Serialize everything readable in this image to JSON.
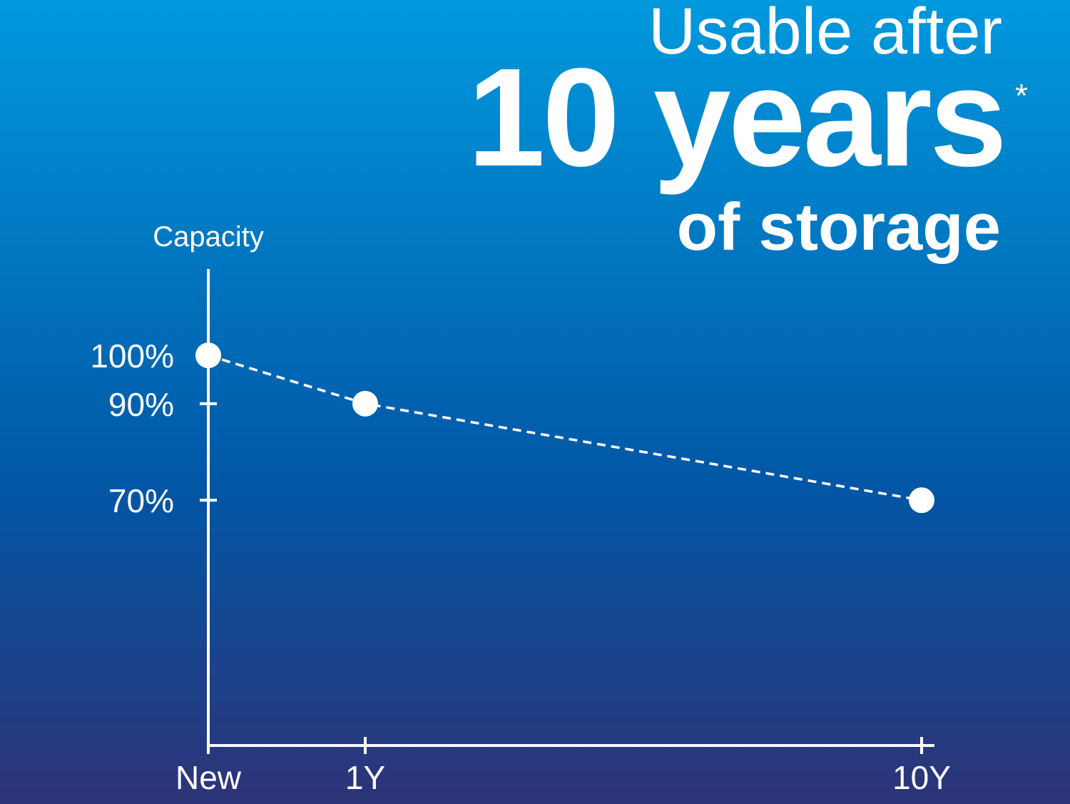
{
  "chart_data": {
    "type": "line",
    "title": "Usable after",
    "title_emphasis": "10 years",
    "title_marker": "*",
    "subtitle": "of storage",
    "y_label": "Capacity",
    "categories": [
      "New",
      "1Y",
      "10Y"
    ],
    "series": [
      {
        "name": "Capacity",
        "color": "#ffffff",
        "values": [
          100,
          90,
          70
        ]
      }
    ],
    "ylim": [
      19.2,
      117.9
    ],
    "yticks": [
      {
        "value": 100,
        "label": "100%"
      },
      {
        "value": 90,
        "label": "90%"
      },
      {
        "value": 70,
        "label": "70%"
      }
    ],
    "line_style": "dashed",
    "grid": false
  }
}
